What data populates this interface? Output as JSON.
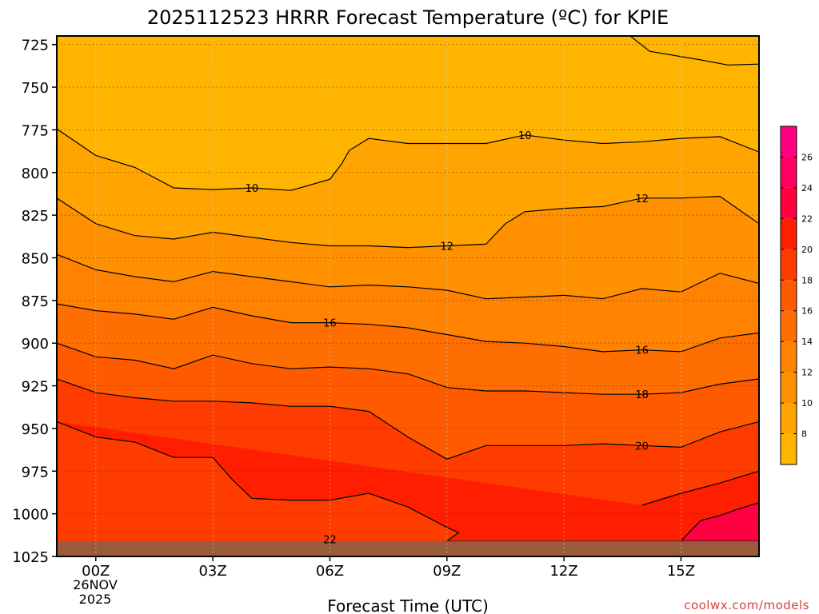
{
  "chart_data": {
    "type": "heatmap",
    "title": "2025112523 HRRR Forecast Temperature (ºC) for KPIE",
    "xlabel": "Forecast Time (UTC)",
    "ylabel": "",
    "x_ticks": [
      "00Z",
      "03Z",
      "06Z",
      "09Z",
      "12Z",
      "15Z"
    ],
    "x_tick_hours": [
      0,
      3,
      6,
      9,
      12,
      15
    ],
    "xlim_hours": [
      -1,
      17
    ],
    "date_label": [
      "26NOV",
      "2025"
    ],
    "y_ticks": [
      725,
      750,
      775,
      800,
      825,
      850,
      875,
      900,
      925,
      950,
      975,
      1000,
      1025
    ],
    "ylim": [
      1025,
      720
    ],
    "y_axis_inverted": true,
    "grid": true,
    "colorbar": {
      "levels": [
        6,
        8,
        10,
        12,
        14,
        16,
        18,
        20,
        22,
        24,
        26,
        28
      ],
      "tick_labels": [
        "8",
        "10",
        "12",
        "14",
        "16",
        "18",
        "20",
        "22",
        "24",
        "26"
      ],
      "colors": [
        "#ffb400",
        "#ffa400",
        "#ff9100",
        "#ff8200",
        "#ff6e00",
        "#ff5a00",
        "#ff3c00",
        "#ff1e00",
        "#ff0040",
        "#ff0060",
        "#ff0080"
      ]
    },
    "contours": [
      {
        "level": 8,
        "fill": "#ffb400",
        "points": [
          [
            13.7,
            720
          ],
          [
            14.2,
            729
          ],
          [
            15.5,
            734
          ],
          [
            16.2,
            737
          ],
          [
            17,
            736.5
          ],
          [
            17,
            720
          ]
        ]
      },
      {
        "level": 10,
        "fill": "#ffa400",
        "points": [
          [
            -1,
            774.5
          ],
          [
            0,
            790
          ],
          [
            1,
            797
          ],
          [
            2,
            809
          ],
          [
            3,
            810
          ],
          [
            4,
            809
          ],
          [
            5,
            810.5
          ],
          [
            6,
            804
          ],
          [
            6.3,
            795
          ],
          [
            6.5,
            787
          ],
          [
            7,
            780
          ],
          [
            8,
            783
          ],
          [
            9,
            783
          ],
          [
            10,
            783
          ],
          [
            11,
            778
          ],
          [
            12,
            781
          ],
          [
            13,
            783
          ],
          [
            14,
            782
          ],
          [
            15,
            780
          ],
          [
            16,
            779
          ],
          [
            17,
            788
          ]
        ]
      },
      {
        "level": 12,
        "fill": "#ff9100",
        "points": [
          [
            -1,
            815
          ],
          [
            0,
            830
          ],
          [
            1,
            837
          ],
          [
            2,
            839
          ],
          [
            3,
            835
          ],
          [
            4,
            838
          ],
          [
            5,
            841
          ],
          [
            6,
            843
          ],
          [
            7,
            843
          ],
          [
            8,
            844
          ],
          [
            9,
            843
          ],
          [
            10,
            842
          ],
          [
            10.5,
            830
          ],
          [
            11,
            823
          ],
          [
            12,
            821
          ],
          [
            13,
            820
          ],
          [
            14,
            815
          ],
          [
            15,
            815
          ],
          [
            16,
            814
          ],
          [
            17,
            830
          ]
        ]
      },
      {
        "level": 14,
        "fill": "#ff8200",
        "points": [
          [
            -1,
            848
          ],
          [
            0,
            857
          ],
          [
            1,
            861
          ],
          [
            2,
            864
          ],
          [
            3,
            858
          ],
          [
            4,
            861
          ],
          [
            5,
            864
          ],
          [
            6,
            867
          ],
          [
            7,
            866
          ],
          [
            8,
            867
          ],
          [
            9,
            869
          ],
          [
            10,
            874
          ],
          [
            11,
            873
          ],
          [
            12,
            872
          ],
          [
            13,
            874
          ],
          [
            14,
            868
          ],
          [
            15,
            870
          ],
          [
            16,
            859
          ],
          [
            17,
            865
          ]
        ]
      },
      {
        "level": 16,
        "fill": "#ff6e00",
        "points": [
          [
            -1,
            877
          ],
          [
            0,
            881
          ],
          [
            1,
            883
          ],
          [
            2,
            886
          ],
          [
            3,
            879
          ],
          [
            4,
            884
          ],
          [
            5,
            888
          ],
          [
            6,
            888
          ],
          [
            7,
            889
          ],
          [
            8,
            891
          ],
          [
            9,
            895
          ],
          [
            10,
            899
          ],
          [
            11,
            900
          ],
          [
            12,
            902
          ],
          [
            13,
            905
          ],
          [
            14,
            904
          ],
          [
            15,
            905
          ],
          [
            16,
            897
          ],
          [
            17,
            894
          ]
        ]
      },
      {
        "level": 18,
        "fill": "#ff5a00",
        "points": [
          [
            -1,
            900
          ],
          [
            0,
            908
          ],
          [
            1,
            910
          ],
          [
            2,
            915
          ],
          [
            3,
            907
          ],
          [
            4,
            912
          ],
          [
            5,
            915
          ],
          [
            6,
            914
          ],
          [
            7,
            915
          ],
          [
            8,
            918
          ],
          [
            9,
            926
          ],
          [
            10,
            928
          ],
          [
            11,
            928
          ],
          [
            12,
            929
          ],
          [
            13,
            930
          ],
          [
            14,
            930
          ],
          [
            15,
            929
          ],
          [
            16,
            924
          ],
          [
            17,
            921
          ]
        ]
      },
      {
        "level": 20,
        "fill": "#ff3c00",
        "points": [
          [
            -1,
            921
          ],
          [
            0,
            929
          ],
          [
            1,
            932
          ],
          [
            2,
            934
          ],
          [
            3,
            934
          ],
          [
            4,
            935
          ],
          [
            5,
            937
          ],
          [
            6,
            937
          ],
          [
            7,
            940
          ],
          [
            8,
            955
          ],
          [
            9,
            968
          ],
          [
            10,
            960
          ],
          [
            11,
            960
          ],
          [
            12,
            960
          ],
          [
            13,
            959
          ],
          [
            14,
            960
          ],
          [
            15,
            961
          ],
          [
            16,
            952
          ],
          [
            17,
            946
          ]
        ]
      },
      {
        "level": 22,
        "fill": "#ff1e00",
        "points": [
          [
            -1,
            946
          ],
          [
            0,
            955
          ],
          [
            1,
            958
          ],
          [
            2,
            967
          ],
          [
            3,
            967
          ],
          [
            3.5,
            980
          ],
          [
            4,
            991
          ],
          [
            5,
            992
          ],
          [
            6,
            992
          ],
          [
            7,
            988
          ],
          [
            8,
            996
          ],
          [
            9,
            1008
          ],
          [
            9.3,
            1011
          ],
          [
            9,
            1016
          ],
          [
            17,
            1016
          ],
          [
            17,
            975
          ],
          [
            16,
            982
          ],
          [
            15,
            988
          ],
          [
            14,
            995
          ]
        ]
      },
      {
        "level": 24,
        "fill": "#ff0040",
        "points": [
          [
            15,
            1016
          ],
          [
            15.5,
            1004
          ],
          [
            16,
            1001
          ],
          [
            16.5,
            997
          ],
          [
            17,
            993.5
          ],
          [
            17,
            1016
          ]
        ]
      }
    ],
    "contour_labels": [
      {
        "text": "10",
        "x": 4.0,
        "y": 809
      },
      {
        "text": "10",
        "x": 11.0,
        "y": 778
      },
      {
        "text": "12",
        "x": 9.0,
        "y": 843
      },
      {
        "text": "12",
        "x": 14.0,
        "y": 815
      },
      {
        "text": "16",
        "x": 6.0,
        "y": 888
      },
      {
        "text": "16",
        "x": 14.0,
        "y": 904
      },
      {
        "text": "18",
        "x": 14.0,
        "y": 930
      },
      {
        "text": "20",
        "x": 14.0,
        "y": 960
      },
      {
        "text": "22",
        "x": 6.0,
        "y": 1015
      }
    ],
    "surface_fill": "#9b5a3a"
  },
  "credit": "coolwx.com/models"
}
